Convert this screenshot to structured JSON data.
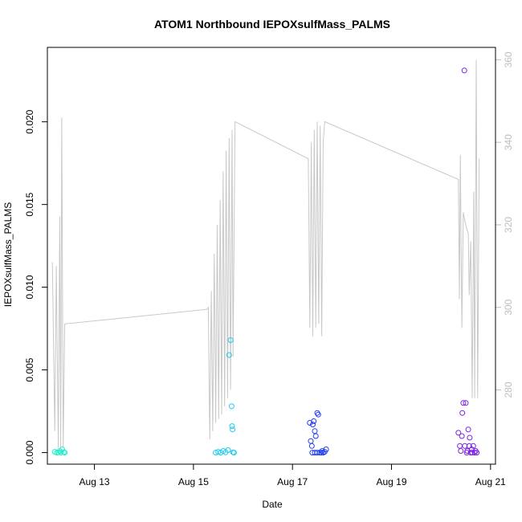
{
  "chart_data": {
    "type": "scatter",
    "title": "ATOM1 Northbound IEPOXsulfMass_PALMS",
    "xlabel": "Date",
    "ylabel": "IEPOXsulfMass_PALMS",
    "x_units": "days in August 2016",
    "xlim": [
      12.05,
      21.1
    ],
    "ylim": [
      -0.0007,
      0.0245
    ],
    "y2lim": [
      262,
      363
    ],
    "x_ticks": [
      {
        "value": 13,
        "label": "Aug 13"
      },
      {
        "value": 15,
        "label": "Aug 15"
      },
      {
        "value": 17,
        "label": "Aug 17"
      },
      {
        "value": 19,
        "label": "Aug 19"
      },
      {
        "value": 21,
        "label": "Aug 21"
      }
    ],
    "y_ticks": [
      {
        "value": 0.0,
        "label": "0.000"
      },
      {
        "value": 0.005,
        "label": "0.005"
      },
      {
        "value": 0.01,
        "label": "0.010"
      },
      {
        "value": 0.015,
        "label": "0.015"
      },
      {
        "value": 0.02,
        "label": "0.020"
      }
    ],
    "y2_ticks": [
      {
        "value": 280,
        "label": "280"
      },
      {
        "value": 300,
        "label": "300"
      },
      {
        "value": 320,
        "label": "320"
      },
      {
        "value": 340,
        "label": "340"
      },
      {
        "value": 360,
        "label": "360"
      }
    ],
    "series": [
      {
        "marker": "circle-open",
        "color": "#22f0c8",
        "points": [
          [
            12.2,
            5e-05
          ],
          [
            12.24,
            0.0
          ],
          [
            12.27,
            2e-05
          ],
          [
            12.3,
            0.0001
          ],
          [
            12.32,
            0.0
          ],
          [
            12.35,
            0.0002
          ],
          [
            12.38,
            3e-05
          ],
          [
            12.4,
            0.0
          ]
        ]
      },
      {
        "marker": "circle-open",
        "color": "#1ecbf0",
        "points": [
          [
            15.45,
            0.0
          ],
          [
            15.5,
            5e-05
          ],
          [
            15.55,
            0.0
          ],
          [
            15.6,
            0.0001
          ],
          [
            15.65,
            2e-05
          ],
          [
            15.7,
            0.00015
          ],
          [
            15.72,
            0.0059
          ],
          [
            15.75,
            0.0068
          ],
          [
            15.77,
            0.0028
          ],
          [
            15.78,
            0.0016
          ],
          [
            15.79,
            0.0014
          ],
          [
            15.8,
            2e-05
          ],
          [
            15.82,
            0.0
          ]
        ]
      },
      {
        "marker": "circle-open",
        "color": "#1f3df0",
        "points": [
          [
            17.35,
            0.0018
          ],
          [
            17.37,
            0.0007
          ],
          [
            17.39,
            0.0004
          ],
          [
            17.41,
            0.0017
          ],
          [
            17.43,
            0.0019
          ],
          [
            17.45,
            0.0013
          ],
          [
            17.47,
            0.001
          ],
          [
            17.5,
            0.0024
          ],
          [
            17.52,
            0.0023
          ],
          [
            17.55,
            0.0
          ],
          [
            17.58,
            0.0
          ],
          [
            17.6,
            0.0001
          ],
          [
            17.62,
            0.0
          ],
          [
            17.65,
            5e-05
          ],
          [
            17.68,
            0.0002
          ],
          [
            17.4,
            0.0
          ],
          [
            17.45,
            0.0
          ],
          [
            17.5,
            0.0
          ]
        ]
      },
      {
        "marker": "circle-open",
        "color": "#7a22e6",
        "points": [
          [
            20.35,
            0.0012
          ],
          [
            20.38,
            0.0004
          ],
          [
            20.4,
            0.0001
          ],
          [
            20.43,
            0.0024
          ],
          [
            20.45,
            0.003
          ],
          [
            20.47,
            0.0231
          ],
          [
            20.5,
            0.003
          ],
          [
            20.52,
            0.0
          ],
          [
            20.55,
            0.0014
          ],
          [
            20.57,
            0.0004
          ],
          [
            20.6,
            0.0
          ],
          [
            20.62,
            0.0002
          ],
          [
            20.65,
            0.0004
          ],
          [
            20.68,
            0.0
          ],
          [
            20.7,
            0.0001
          ],
          [
            20.42,
            0.001
          ],
          [
            20.48,
            0.0004
          ],
          [
            20.53,
            0.0001
          ],
          [
            20.58,
            0.0009
          ],
          [
            20.63,
            0.0
          ],
          [
            20.72,
            0.0
          ]
        ]
      },
      {
        "type": "line",
        "axis": "right",
        "color": "#c8c8c8",
        "points": [
          [
            12.15,
            311
          ],
          [
            12.2,
            270
          ],
          [
            12.23,
            310
          ],
          [
            12.27,
            266
          ],
          [
            12.3,
            322
          ],
          [
            12.32,
            266
          ],
          [
            12.34,
            346
          ],
          [
            12.37,
            266
          ],
          [
            12.4,
            296
          ],
          [
            15.27,
            299.5
          ],
          [
            15.3,
            300
          ],
          [
            15.33,
            268
          ],
          [
            15.36,
            304
          ],
          [
            15.39,
            270
          ],
          [
            15.42,
            313
          ],
          [
            15.45,
            272
          ],
          [
            15.48,
            320
          ],
          [
            15.51,
            273
          ],
          [
            15.54,
            326
          ],
          [
            15.57,
            274
          ],
          [
            15.6,
            333
          ],
          [
            15.63,
            276
          ],
          [
            15.66,
            338
          ],
          [
            15.69,
            278
          ],
          [
            15.72,
            341
          ],
          [
            15.75,
            280
          ],
          [
            15.78,
            343
          ],
          [
            15.8,
            288
          ],
          [
            15.84,
            345
          ],
          [
            17.32,
            336
          ],
          [
            17.35,
            295
          ],
          [
            17.38,
            340
          ],
          [
            17.41,
            293
          ],
          [
            17.44,
            343
          ],
          [
            17.47,
            295
          ],
          [
            17.5,
            345
          ],
          [
            17.53,
            296
          ],
          [
            17.56,
            344
          ],
          [
            17.59,
            293
          ],
          [
            17.62,
            340
          ],
          [
            17.65,
            345
          ],
          [
            20.35,
            331
          ],
          [
            20.37,
            302
          ],
          [
            20.39,
            337
          ],
          [
            20.42,
            295
          ],
          [
            20.45,
            323
          ],
          [
            20.48,
            321
          ],
          [
            20.52,
            319
          ],
          [
            20.55,
            318
          ],
          [
            20.57,
            303
          ],
          [
            20.6,
            316
          ],
          [
            20.63,
            278
          ],
          [
            20.66,
            328
          ],
          [
            20.68,
            278
          ],
          [
            20.71,
            360
          ],
          [
            20.74,
            278
          ],
          [
            20.77,
            336
          ]
        ]
      }
    ]
  }
}
